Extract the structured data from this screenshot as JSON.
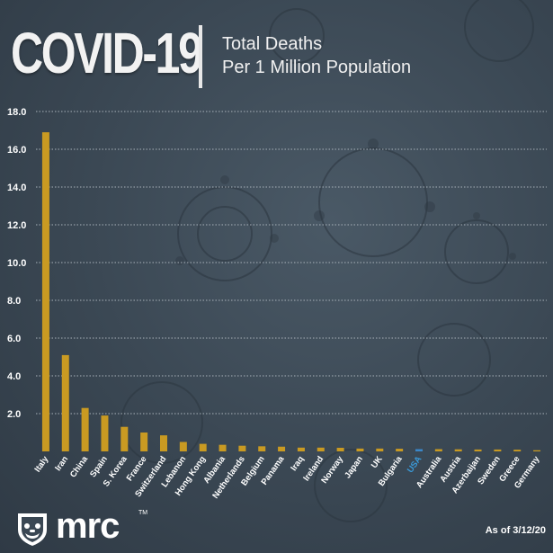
{
  "header": {
    "title": "COVID-19",
    "subtitle_line1": "Total Deaths",
    "subtitle_line2": "Per 1 Million Population"
  },
  "footer": {
    "logo_text": "mrc",
    "logo_tm": "TM",
    "as_of": "As of 3/12/20"
  },
  "colors": {
    "bar": "#c99a22",
    "highlight_bar": "#3a87c9",
    "highlight_label": "#3a9ad9",
    "grid": "#a9b2ba",
    "text": "#ffffff"
  },
  "chart_data": {
    "type": "bar",
    "title": "Total Deaths Per 1 Million Population",
    "categories": [
      "Italy",
      "Iran",
      "China",
      "Spain",
      "S. Korea",
      "France",
      "Switzerland",
      "Lebanon",
      "Hong Kong",
      "Albania",
      "Netherlands",
      "Belgium",
      "Panama",
      "Iraq",
      "Ireland",
      "Norway",
      "Japan",
      "UK",
      "Bulgaria",
      "USA",
      "Australia",
      "Austria",
      "Azerbaijan",
      "Sweden",
      "Greece",
      "Germany"
    ],
    "values": [
      16.9,
      5.1,
      2.3,
      1.9,
      1.3,
      1.0,
      0.85,
      0.5,
      0.4,
      0.35,
      0.3,
      0.27,
      0.25,
      0.2,
      0.2,
      0.19,
      0.15,
      0.15,
      0.14,
      0.12,
      0.12,
      0.11,
      0.1,
      0.1,
      0.09,
      0.06
    ],
    "highlight": "USA",
    "yticks": [
      "18.0",
      "16.0",
      "14.0",
      "12.0",
      "10.0",
      "8.0",
      "6.0",
      "4.0",
      "2.0"
    ],
    "ylim": [
      0,
      18
    ],
    "grid": true,
    "xlabel": "",
    "ylabel": ""
  }
}
